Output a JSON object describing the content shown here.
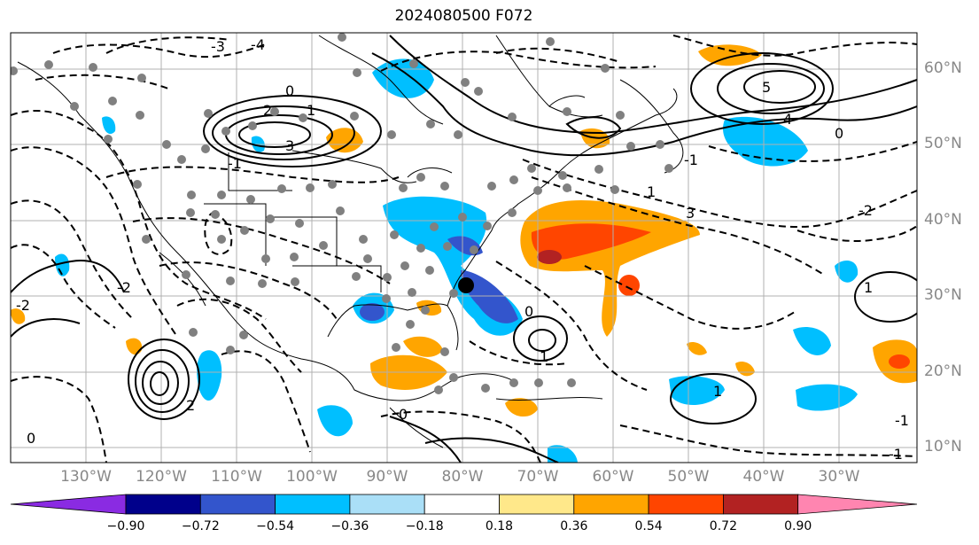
{
  "title": "2024080500 F072",
  "map": {
    "lat_labels": [
      "60°N",
      "50°N",
      "40°N",
      "30°N",
      "20°N",
      "10°N"
    ],
    "lon_labels": [
      "130°W",
      "120°W",
      "110°W",
      "100°W",
      "90°W",
      "80°W",
      "70°W",
      "60°W",
      "50°W",
      "40°W",
      "30°W"
    ],
    "contour_labels": [
      "-3",
      "-4",
      "-1",
      "0",
      "1",
      "2",
      "3",
      "4",
      "5",
      "-2",
      "0",
      "1",
      "-1",
      "3",
      "-2",
      "0",
      "1",
      "2",
      "-1",
      "0",
      "1",
      "-2",
      "0",
      "1",
      "-1"
    ],
    "marker": "storm-center-dot"
  },
  "colorbar": {
    "ticks": [
      "−0.90",
      "−0.72",
      "−0.54",
      "−0.36",
      "−0.18",
      "0.18",
      "0.36",
      "0.54",
      "0.72",
      "0.90"
    ],
    "colors": [
      "#8a2be2",
      "#00008b",
      "#3355cc",
      "#00bfff",
      "#aadff7",
      "#ffffff",
      "#ffe88a",
      "#ffa500",
      "#ff4500",
      "#b22222",
      "#ff85b0"
    ]
  }
}
